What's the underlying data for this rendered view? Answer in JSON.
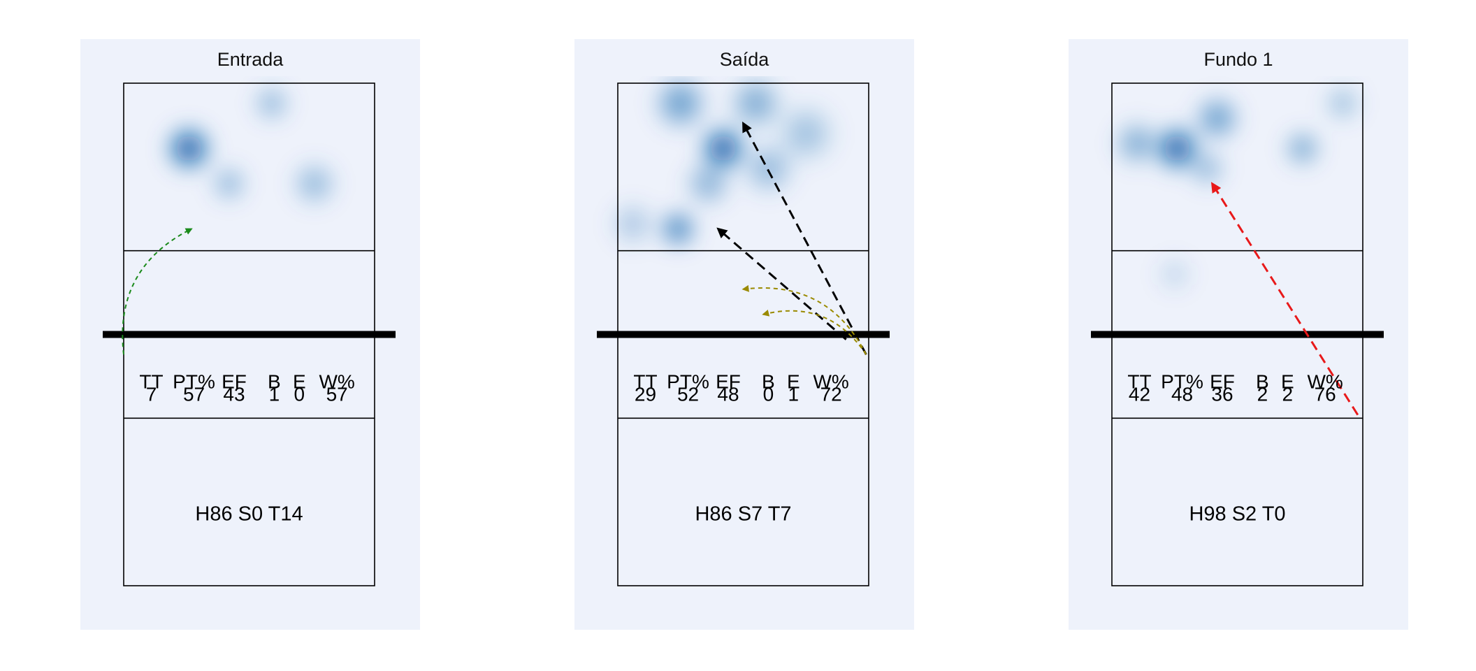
{
  "chart_data": {
    "type": "heatmap",
    "description_visible": false,
    "colors": {
      "panel_background": "#EEF2FB",
      "heat": "#0B5CA9",
      "court_line": "#000000",
      "net": "#000000",
      "green_arrow": "#1A8A1A",
      "olive_arrow": "#9A8A00",
      "black_arrow": "#000000",
      "red_arrow": "#E8191A"
    },
    "panels": [
      {
        "title": "Entrada",
        "stats_header": [
          "TT",
          "PT%",
          "EF",
          "B",
          "E",
          "W%"
        ],
        "stats_values": [
          "7",
          "57",
          "43",
          "1",
          "0",
          "57"
        ],
        "footer": "H86 S0 T14",
        "heat_spots": [
          {
            "x": 0.26,
            "y": 0.13,
            "intensity": 1.0,
            "spread": 0.06
          },
          {
            "x": 0.59,
            "y": 0.04,
            "intensity": 0.35,
            "spread": 0.05
          },
          {
            "x": 0.42,
            "y": 0.2,
            "intensity": 0.35,
            "spread": 0.05
          },
          {
            "x": 0.76,
            "y": 0.2,
            "intensity": 0.35,
            "spread": 0.06
          }
        ],
        "arrows": [
          {
            "from": [
              0.0,
              0.54
            ],
            "to": [
              0.27,
              0.29
            ],
            "style": "dashed-curve",
            "color": "green_arrow"
          }
        ]
      },
      {
        "title": "Saída",
        "stats_header": [
          "TT",
          "PT%",
          "EF",
          "B",
          "E",
          "W%"
        ],
        "stats_values": [
          "29",
          "52",
          "48",
          "0",
          "1",
          "72"
        ],
        "footer": "H86 S7 T7",
        "heat_spots": [
          {
            "x": 0.42,
            "y": 0.13,
            "intensity": 1.0,
            "spread": 0.06
          },
          {
            "x": 0.25,
            "y": 0.04,
            "intensity": 0.55,
            "spread": 0.07
          },
          {
            "x": 0.55,
            "y": 0.04,
            "intensity": 0.45,
            "spread": 0.07
          },
          {
            "x": 0.75,
            "y": 0.1,
            "intensity": 0.3,
            "spread": 0.08
          },
          {
            "x": 0.6,
            "y": 0.17,
            "intensity": 0.35,
            "spread": 0.07
          },
          {
            "x": 0.36,
            "y": 0.2,
            "intensity": 0.4,
            "spread": 0.06
          },
          {
            "x": 0.24,
            "y": 0.29,
            "intensity": 0.7,
            "spread": 0.05
          },
          {
            "x": 0.06,
            "y": 0.28,
            "intensity": 0.25,
            "spread": 0.06
          }
        ],
        "arrows": [
          {
            "from": [
              0.99,
              0.54
            ],
            "to": [
              0.5,
              0.08
            ],
            "style": "dashed",
            "color": "black_arrow"
          },
          {
            "from": [
              0.91,
              0.51
            ],
            "to": [
              0.4,
              0.29
            ],
            "style": "dashed",
            "color": "black_arrow"
          },
          {
            "from": [
              0.99,
              0.54
            ],
            "to": [
              0.5,
              0.41
            ],
            "style": "dashed-curve",
            "color": "olive_arrow"
          },
          {
            "from": [
              0.99,
              0.54
            ],
            "to": [
              0.58,
              0.46
            ],
            "style": "dashed-curve",
            "color": "olive_arrow"
          }
        ]
      },
      {
        "title": "Fundo 1",
        "stats_header": [
          "TT",
          "PT%",
          "EF",
          "B",
          "E",
          "W%"
        ],
        "stats_values": [
          "42",
          "48",
          "36",
          "2",
          "2",
          "76"
        ],
        "footer": "H98 S2 T0",
        "heat_spots": [
          {
            "x": 0.26,
            "y": 0.13,
            "intensity": 1.0,
            "spread": 0.06
          },
          {
            "x": 0.1,
            "y": 0.12,
            "intensity": 0.45,
            "spread": 0.06
          },
          {
            "x": 0.42,
            "y": 0.07,
            "intensity": 0.55,
            "spread": 0.06
          },
          {
            "x": 0.38,
            "y": 0.17,
            "intensity": 0.35,
            "spread": 0.05
          },
          {
            "x": 0.76,
            "y": 0.13,
            "intensity": 0.45,
            "spread": 0.05
          },
          {
            "x": 0.92,
            "y": 0.04,
            "intensity": 0.3,
            "spread": 0.05
          },
          {
            "x": 0.25,
            "y": 0.38,
            "intensity": 0.15,
            "spread": 0.05
          }
        ],
        "arrows": [
          {
            "from": [
              0.98,
              0.66
            ],
            "to": [
              0.4,
              0.2
            ],
            "style": "dashed",
            "color": "red_arrow"
          }
        ]
      }
    ]
  }
}
